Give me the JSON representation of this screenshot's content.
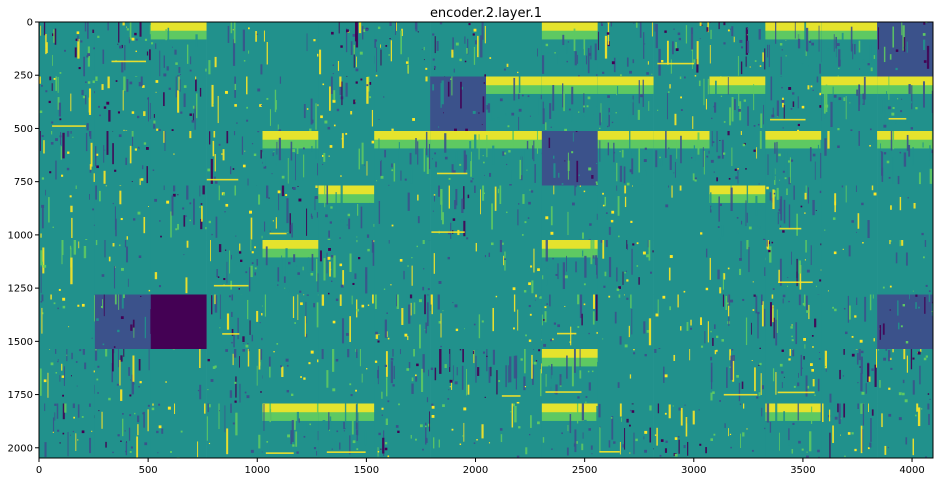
{
  "chart_data": {
    "type": "heatmap",
    "title": "encoder.2.layer.1",
    "xlabel": "",
    "ylabel": "",
    "xlim": [
      0,
      4096
    ],
    "ylim": [
      2048,
      0
    ],
    "grid": false,
    "colormap": "viridis",
    "x_ticks": [
      0,
      500,
      1000,
      1500,
      2000,
      2500,
      3000,
      3500,
      4000
    ],
    "x_tick_labels": [
      "0",
      "500",
      "1000",
      "1500",
      "2000",
      "2500",
      "3000",
      "3500",
      "4000"
    ],
    "y_ticks": [
      0,
      250,
      500,
      750,
      1000,
      1250,
      1500,
      1750,
      2000
    ],
    "y_tick_labels": [
      "0",
      "250",
      "500",
      "750",
      "1000",
      "1250",
      "1500",
      "1750",
      "2000"
    ],
    "tile_grid": {
      "rows": 8,
      "cols": 16,
      "tile_size": 256,
      "tile_style": [
        [
          "mixed",
          "mixed",
          "bright",
          "sparse",
          "flat",
          "mixed",
          "mixed",
          "mixed",
          "flat",
          "bright",
          "mixed",
          "mixed",
          "mixed",
          "bright",
          "bright",
          "dark"
        ],
        [
          "mixed",
          "mixed",
          "mixed",
          "sparse",
          "sparse",
          "mixed",
          "flat",
          "dark",
          "bright",
          "bright",
          "bright",
          "sparse",
          "bright",
          "mixed",
          "bright",
          "bright"
        ],
        [
          "mixed",
          "mixed",
          "flat",
          "mixed",
          "bright",
          "sparse",
          "bright",
          "bright",
          "bright",
          "dark",
          "bright",
          "bright",
          "mixed",
          "bright",
          "flat",
          "bright"
        ],
        [
          "sparse",
          "sparse",
          "mixed",
          "sparse",
          "mixed",
          "bright",
          "flat",
          "mixed",
          "sparse",
          "sparse",
          "sparse",
          "flat",
          "bright",
          "mixed",
          "sparse",
          "flat"
        ],
        [
          "sparse",
          "sparse",
          "flat",
          "mixed",
          "bright",
          "mixed",
          "sparse",
          "flat",
          "sparse",
          "bright",
          "mixed",
          "flat",
          "sparse",
          "mixed",
          "flat",
          "sparse"
        ],
        [
          "sparse",
          "dark",
          "black",
          "mixed",
          "sparse",
          "sparse",
          "mixed",
          "sparse",
          "sparse",
          "mixed",
          "sparse",
          "sparse",
          "mixed",
          "mixed",
          "sparse",
          "dark"
        ],
        [
          "mixed",
          "mixed",
          "flat",
          "mixed",
          "sparse",
          "sparse",
          "mixed",
          "mixed",
          "mixed",
          "bright",
          "flat",
          "flat",
          "mixed",
          "mixed",
          "mixed",
          "mixed"
        ],
        [
          "mixed",
          "mixed",
          "sparse",
          "sparse",
          "bright",
          "bright",
          "mixed",
          "sparse",
          "sparse",
          "bright",
          "mixed",
          "mixed",
          "sparse",
          "bright",
          "mixed",
          "sparse"
        ]
      ]
    }
  },
  "colors": {
    "viridis_low": "#440154",
    "viridis_dark": "#3b528b",
    "viridis_mid": "#21918c",
    "viridis_light": "#5ec962",
    "viridis_high": "#fde725",
    "axis": "#000000"
  }
}
